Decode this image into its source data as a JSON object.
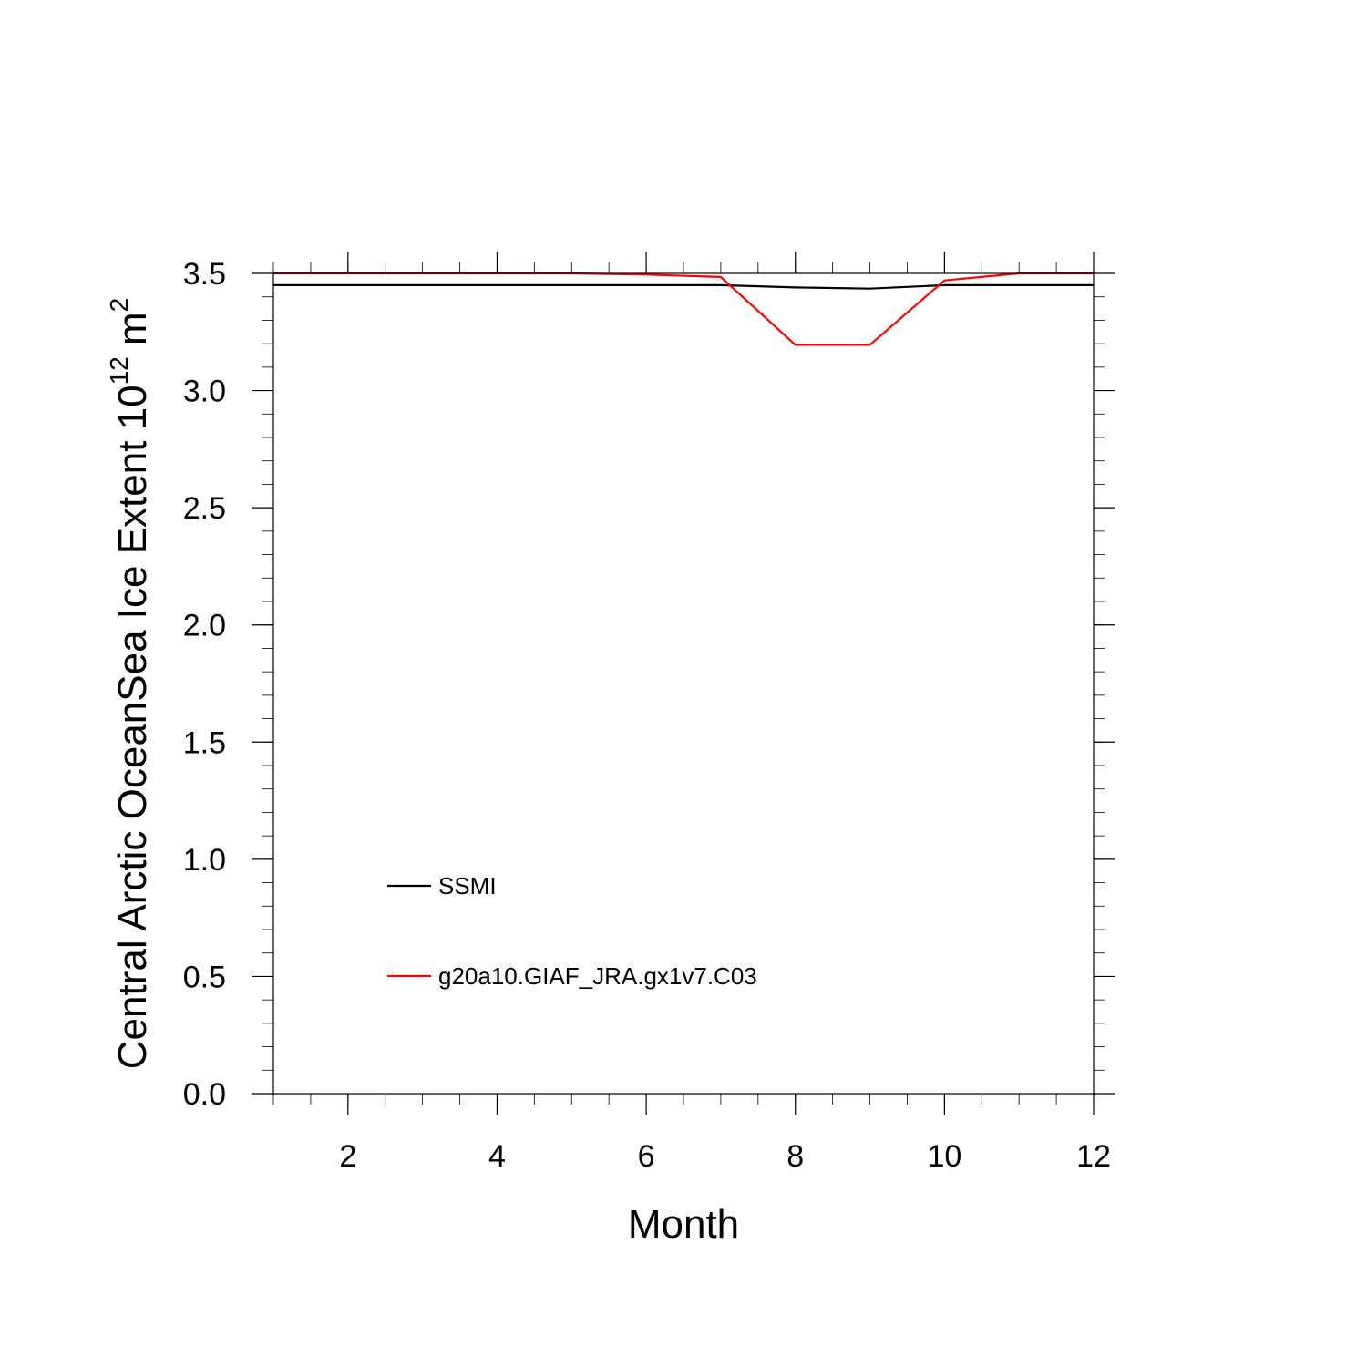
{
  "chart_data": {
    "type": "line",
    "xlabel": "Month",
    "ylabel": "Central Arctic OceanSea Ice Extent 10",
    "ylabel_exponent": "12",
    "ylabel_unit": " m",
    "ylabel_unit_exponent": "2",
    "xlim": [
      1,
      12
    ],
    "ylim": [
      0.0,
      3.5
    ],
    "x_ticks": [
      2,
      4,
      6,
      8,
      10,
      12
    ],
    "x_tick_labels": [
      "2",
      "4",
      "6",
      "8",
      "10",
      "12"
    ],
    "y_ticks": [
      0.0,
      0.5,
      1.0,
      1.5,
      2.0,
      2.5,
      3.0,
      3.5
    ],
    "y_tick_labels": [
      "0.0",
      "0.5",
      "1.0",
      "1.5",
      "2.0",
      "2.5",
      "3.0",
      "3.5"
    ],
    "grid": false,
    "legend_position": "lower-left",
    "x": [
      1,
      2,
      3,
      4,
      5,
      6,
      7,
      8,
      9,
      10,
      11,
      12
    ],
    "series": [
      {
        "name": "SSMI",
        "color": "#000000",
        "values": [
          3.45,
          3.45,
          3.45,
          3.45,
          3.45,
          3.45,
          3.45,
          3.44,
          3.435,
          3.45,
          3.45,
          3.45
        ]
      },
      {
        "name": "g20a10.GIAF_JRA.gx1v7.C03",
        "color": "#ff0000",
        "values": [
          3.5,
          3.5,
          3.5,
          3.5,
          3.5,
          3.495,
          3.485,
          3.195,
          3.195,
          3.47,
          3.5,
          3.5
        ]
      }
    ]
  }
}
